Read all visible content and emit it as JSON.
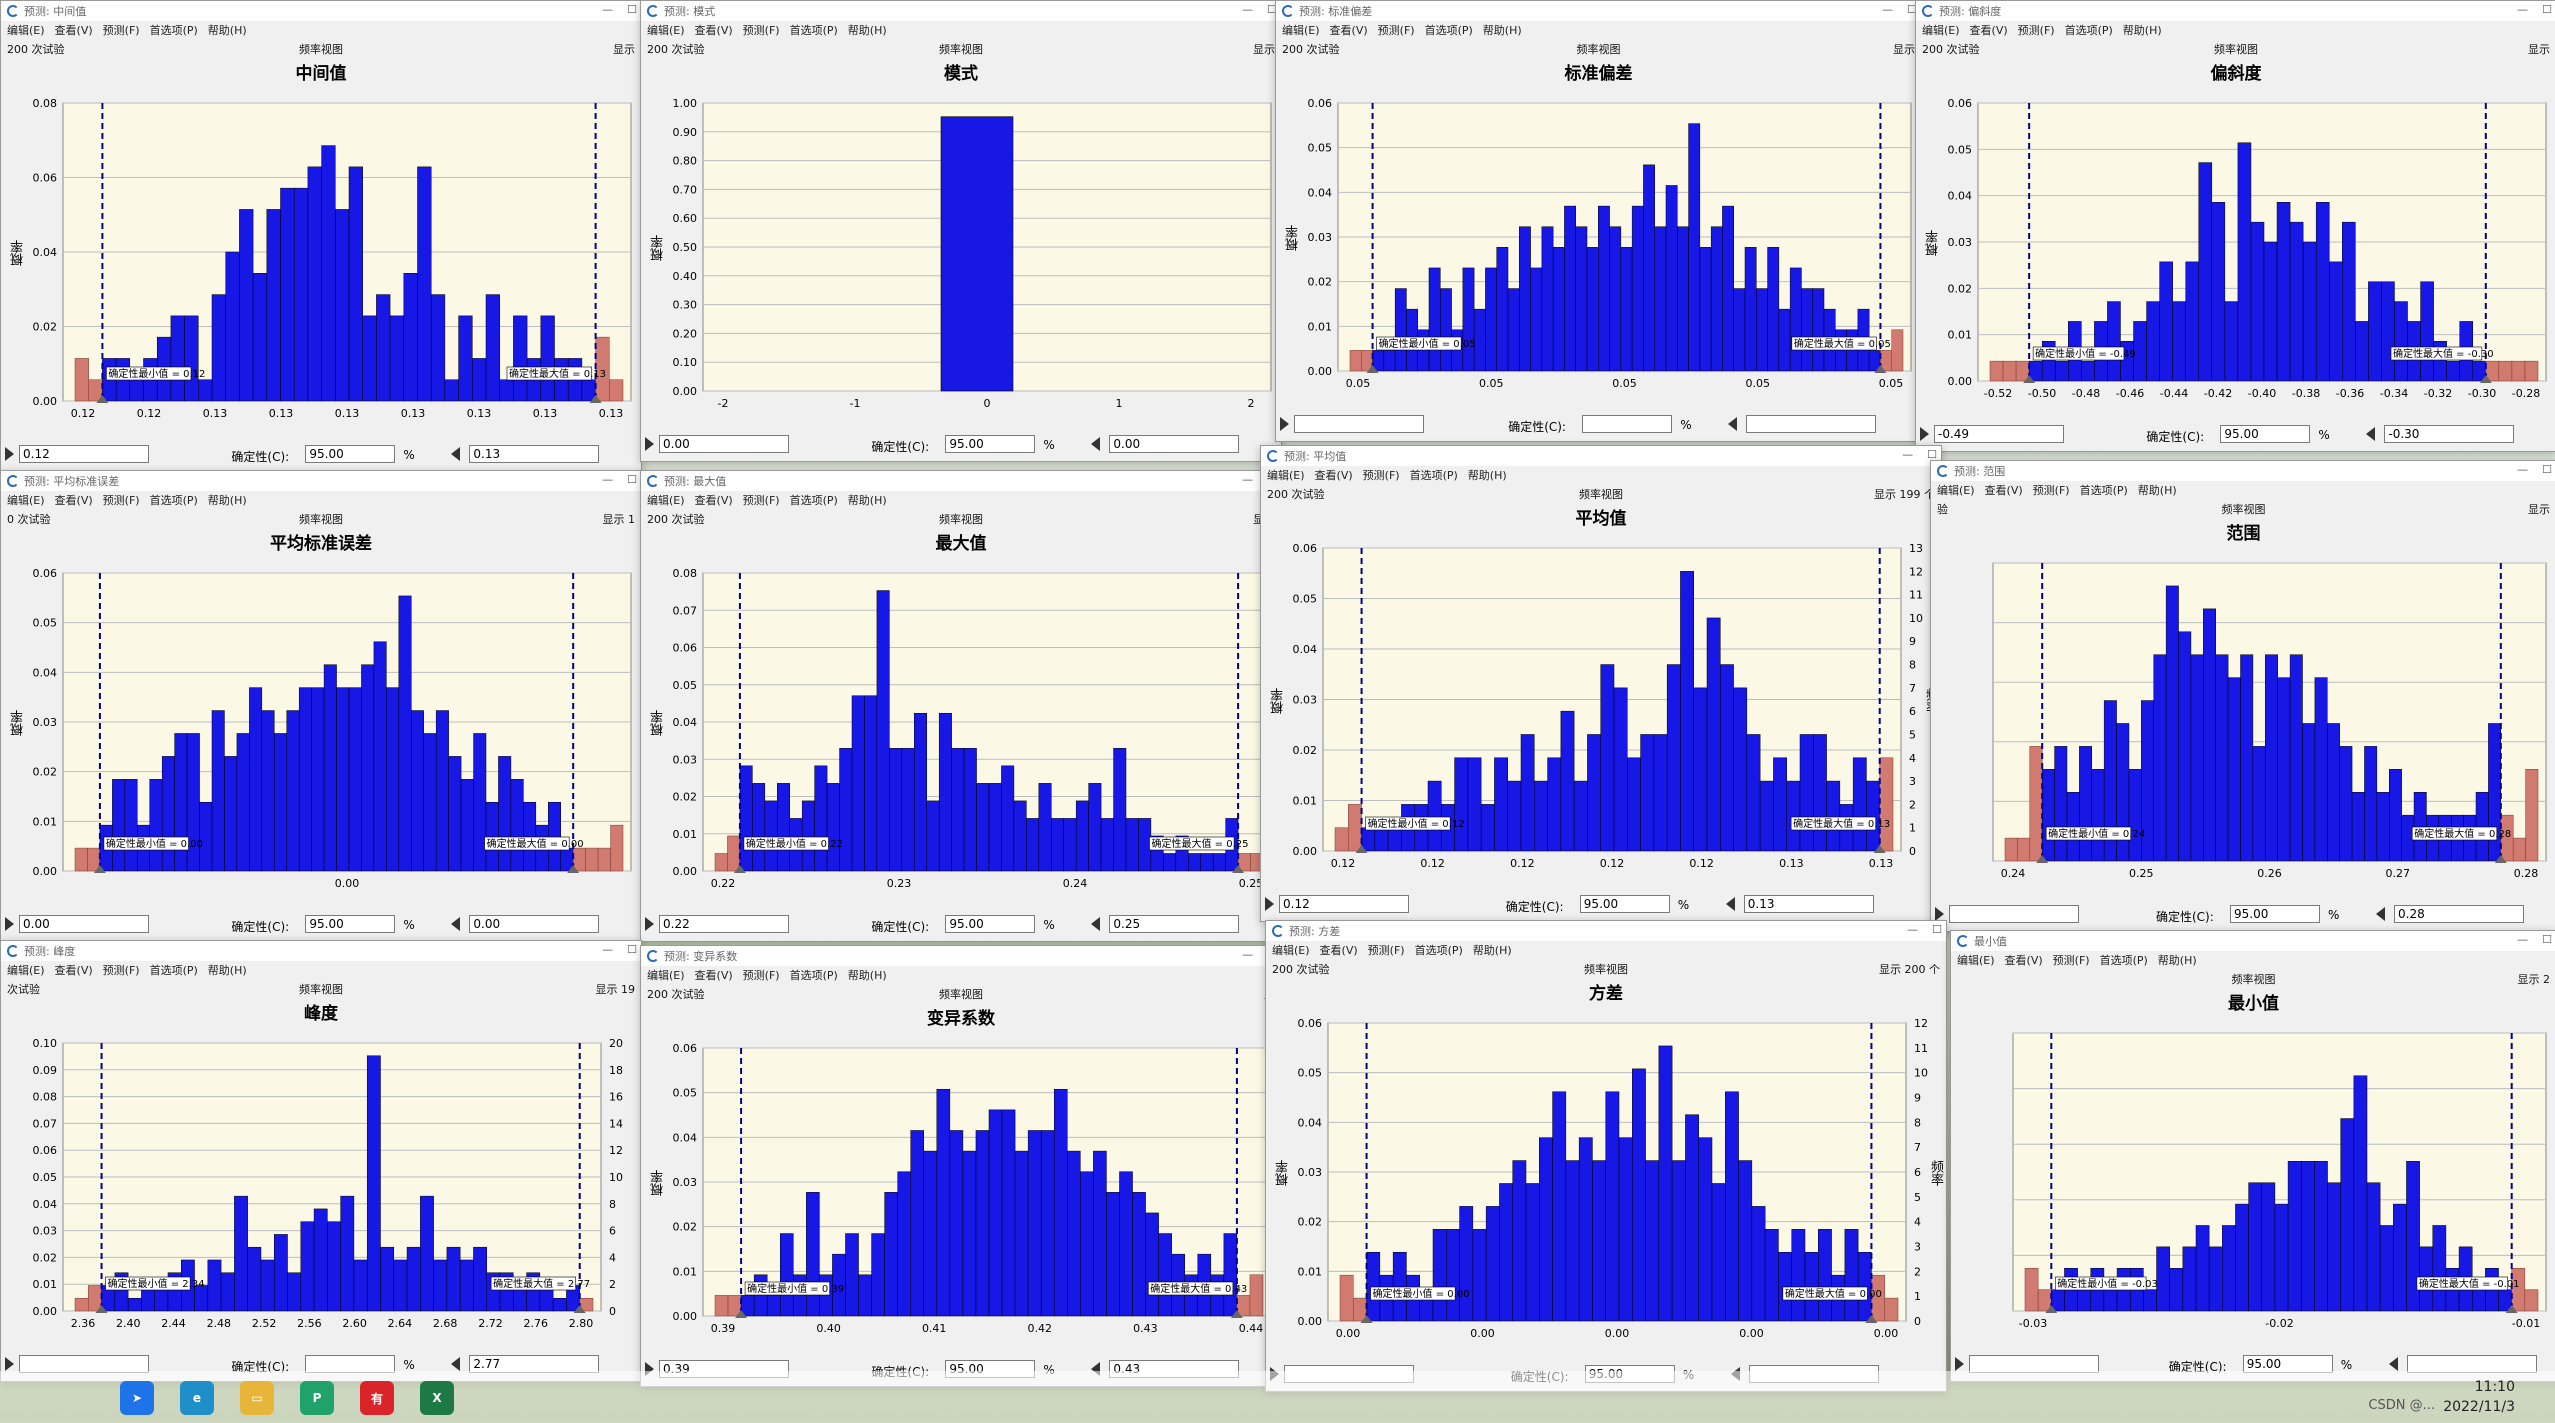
{
  "ui": {
    "menu": [
      "编辑(E)",
      "查看(V)",
      "预测(F)",
      "首选项(P)",
      "帮助(H)"
    ],
    "view_label": "频率视图",
    "certainty_label": "确定性(C):",
    "pct": "%",
    "y_axis_label": "概率",
    "y2_axis_label": "频率",
    "min_cert_label": "确定性最小值",
    "max_cert_label": "确定性最大值",
    "colors": {
      "bar": "#1717e6",
      "tail": "#d07a70",
      "plot_bg": "#fbf9e6",
      "cert_line": "#00008b"
    }
  },
  "taskbar": {
    "time": "11:10",
    "date": "2022/11/3",
    "watermark": "CSDN @..."
  },
  "windows": [
    {
      "title": "预测: 中间值",
      "chart_title": "中间值",
      "trials": "200 次试验",
      "display": "显示",
      "left_value": "0.12",
      "certainty": "95.00",
      "right_value": "0.13",
      "minv_label": "= 0.12",
      "maxv_label": "= 0.13"
    },
    {
      "title": "预测: 模式",
      "chart_title": "模式",
      "trials": "200 次试验",
      "display": "显示",
      "left_value": "0.00",
      "certainty": "95.00",
      "right_value": "0.00",
      "minv_label": "= 0.00",
      "maxv_label": "= 0.00"
    },
    {
      "title": "预测: 标准偏差",
      "chart_title": "标准偏差",
      "trials": "200 次试验",
      "display": "显示",
      "left_value": "",
      "certainty": "",
      "right_value": "",
      "minv_label": "= 0.05",
      "maxv_label": "= 0.05"
    },
    {
      "title": "预测: 偏斜度",
      "chart_title": "偏斜度",
      "trials": "200 次试验",
      "display": "显示",
      "left_value": "-0.49",
      "certainty": "95.00",
      "right_value": "-0.30",
      "minv_label": "= -0.49",
      "maxv_label": "= -0.30"
    },
    {
      "title": "预测: 平均标准误差",
      "chart_title": "平均标准误差",
      "trials": "0 次试验",
      "display": "显示 1",
      "left_value": "0.00",
      "certainty": "95.00",
      "right_value": "0.00",
      "minv_label": "= 0.00",
      "maxv_label": "= 0.00"
    },
    {
      "title": "预测: 最大值",
      "chart_title": "最大值",
      "trials": "200 次试验",
      "display": "显示",
      "left_value": "0.22",
      "certainty": "95.00",
      "right_value": "0.25",
      "minv_label": "= 0.22",
      "maxv_label": "= 0.25"
    },
    {
      "title": "预测: 平均值",
      "chart_title": "平均值",
      "trials": "200 次试验",
      "display": "显示 199 个",
      "left_value": "0.12",
      "certainty": "95.00",
      "right_value": "0.13",
      "minv_label": "= 0.12",
      "maxv_label": "= 0.13"
    },
    {
      "title": "预测: 范围",
      "chart_title": "范围",
      "trials": "验",
      "display": "显示",
      "left_value": "",
      "certainty": "95.00",
      "right_value": "0.28",
      "minv_label": "= 0.24",
      "maxv_label": "= 0.28"
    },
    {
      "title": "预测: 峰度",
      "chart_title": "峰度",
      "trials": "次试验",
      "display": "显示 19",
      "left_value": "",
      "certainty": "",
      "right_value": "2.77",
      "minv_label": "= 2.34",
      "maxv_label": "= 2.77"
    },
    {
      "title": "预测: 变异系数",
      "chart_title": "变异系数",
      "trials": "200 次试验",
      "display": "显",
      "left_value": "0.39",
      "certainty": "95.00",
      "right_value": "0.43",
      "minv_label": "= 0.39",
      "maxv_label": "= 0.43"
    },
    {
      "title": "预测: 方差",
      "chart_title": "方差",
      "trials": "200 次试验",
      "display": "显示 200 个",
      "left_value": "",
      "certainty": "95.00",
      "right_value": "",
      "minv_label": "= 0.00",
      "maxv_label": "= 0.00"
    },
    {
      "title": "最小值",
      "chart_title": "最小值",
      "trials": "",
      "display": "显示 2",
      "left_value": "",
      "certainty": "95.00",
      "right_value": "",
      "minv_label": "= -0.03",
      "maxv_label": "= -0.01"
    }
  ],
  "chart_data": [
    {
      "type": "bar",
      "title": "中间值",
      "ylabel": "概率",
      "ylim": [
        0,
        0.07
      ],
      "yticks": [
        "0.00",
        "0.02",
        "0.04",
        "0.06",
        "0.08"
      ],
      "xticks": [
        "0.12",
        "0.12",
        "0.13",
        "0.13",
        "0.13",
        "0.13",
        "0.13",
        "0.13",
        "0.13"
      ],
      "values": [
        0.01,
        0.01,
        0.005,
        0.01,
        0.015,
        0.02,
        0.02,
        0.005,
        0.025,
        0.035,
        0.045,
        0.03,
        0.045,
        0.05,
        0.05,
        0.055,
        0.06,
        0.045,
        0.055,
        0.02,
        0.025,
        0.02,
        0.03,
        0.055,
        0.025,
        0.005,
        0.02,
        0.01,
        0.025,
        0.005,
        0.02,
        0.01,
        0.02,
        0.01,
        0.01,
        0.005
      ],
      "tail_left": [
        0.01,
        0.005
      ],
      "tail_right": [
        0.015,
        0.005
      ]
    },
    {
      "type": "bar",
      "title": "模式",
      "ylabel": "概率",
      "ylim": [
        0,
        1.05
      ],
      "yticks": [
        "0.00",
        "0.10",
        "0.20",
        "0.30",
        "0.40",
        "0.50",
        "0.60",
        "0.70",
        "0.80",
        "0.90",
        "1.00"
      ],
      "xticks": [
        "-2",
        "-1",
        "0",
        "1",
        "2"
      ],
      "values": [
        1.0
      ],
      "tail_left": [],
      "tail_right": []
    },
    {
      "type": "bar",
      "title": "标准偏差",
      "ylabel": "概率",
      "ylim": [
        0,
        0.065
      ],
      "yticks": [
        "0.00",
        "0.01",
        "0.02",
        "0.03",
        "0.04",
        "0.05",
        "0.06"
      ],
      "xticks": [
        "0.05",
        "0.05",
        "0.05",
        "0.05",
        "0.05"
      ],
      "values": [
        0.005,
        0.005,
        0.02,
        0.015,
        0.01,
        0.025,
        0.02,
        0.01,
        0.025,
        0.015,
        0.025,
        0.03,
        0.02,
        0.035,
        0.025,
        0.035,
        0.03,
        0.04,
        0.035,
        0.03,
        0.04,
        0.035,
        0.03,
        0.04,
        0.05,
        0.035,
        0.045,
        0.035,
        0.06,
        0.03,
        0.035,
        0.04,
        0.02,
        0.03,
        0.02,
        0.03,
        0.015,
        0.025,
        0.02,
        0.02,
        0.015,
        0.01,
        0.01,
        0.015,
        0.005
      ],
      "tail_left": [
        0.005,
        0.005
      ],
      "tail_right": [
        0.005,
        0.01
      ]
    },
    {
      "type": "bar",
      "title": "偏斜度",
      "ylabel": "概率",
      "ylim": [
        0,
        0.07
      ],
      "yticks": [
        "0.00",
        "0.01",
        "0.02",
        "0.03",
        "0.04",
        "0.05",
        "0.06"
      ],
      "xticks": [
        "-0.52",
        "-0.50",
        "-0.48",
        "-0.46",
        "-0.44",
        "-0.42",
        "-0.40",
        "-0.38",
        "-0.36",
        "-0.34",
        "-0.32",
        "-0.30",
        "-0.28"
      ],
      "values": [
        0.005,
        0.01,
        0.005,
        0.015,
        0.005,
        0.015,
        0.02,
        0.01,
        0.015,
        0.02,
        0.03,
        0.02,
        0.03,
        0.055,
        0.045,
        0.02,
        0.06,
        0.04,
        0.035,
        0.045,
        0.04,
        0.035,
        0.045,
        0.03,
        0.04,
        0.015,
        0.025,
        0.025,
        0.02,
        0.015,
        0.025,
        0.01,
        0.005,
        0.015,
        0.005
      ],
      "tail_left": [
        0.005,
        0.005,
        0.005
      ],
      "tail_right": [
        0.005,
        0.005,
        0.005,
        0.005
      ]
    },
    {
      "type": "bar",
      "title": "平均标准误差",
      "ylabel": "概率",
      "ylim": [
        0,
        0.065
      ],
      "yticks": [
        "0.00",
        "0.01",
        "0.02",
        "0.03",
        "0.04",
        "0.05",
        "0.06"
      ],
      "xticks": [
        "0.00"
      ],
      "values": [
        0.01,
        0.02,
        0.02,
        0.01,
        0.02,
        0.025,
        0.03,
        0.03,
        0.015,
        0.035,
        0.025,
        0.03,
        0.04,
        0.035,
        0.03,
        0.035,
        0.04,
        0.04,
        0.045,
        0.04,
        0.04,
        0.045,
        0.05,
        0.04,
        0.06,
        0.035,
        0.03,
        0.035,
        0.025,
        0.02,
        0.03,
        0.015,
        0.025,
        0.02,
        0.015,
        0.01,
        0.015,
        0.005
      ],
      "tail_left": [
        0.005,
        0.005
      ],
      "tail_right": [
        0.005,
        0.005,
        0.005,
        0.01
      ]
    },
    {
      "type": "bar",
      "title": "最大值",
      "ylabel": "概率",
      "ylim": [
        0,
        0.085
      ],
      "yticks": [
        "0.00",
        "0.01",
        "0.02",
        "0.03",
        "0.04",
        "0.05",
        "0.06",
        "0.07",
        "0.08"
      ],
      "xticks": [
        "0.22",
        "0.23",
        "0.24",
        "0.25"
      ],
      "values": [
        0.03,
        0.025,
        0.02,
        0.025,
        0.015,
        0.02,
        0.03,
        0.025,
        0.035,
        0.05,
        0.05,
        0.08,
        0.035,
        0.035,
        0.045,
        0.02,
        0.045,
        0.035,
        0.035,
        0.025,
        0.025,
        0.03,
        0.02,
        0.015,
        0.025,
        0.015,
        0.015,
        0.02,
        0.025,
        0.015,
        0.035,
        0.015,
        0.015,
        0.01,
        0.005,
        0.01,
        0.005,
        0.005,
        0.005,
        0.015
      ],
      "tail_left": [
        0.005,
        0.01
      ],
      "tail_right": [
        0.005,
        0.005
      ]
    },
    {
      "type": "bar",
      "title": "平均值",
      "ylabel": "概率",
      "y2label": "频率",
      "ylim": [
        0,
        0.065
      ],
      "yticks": [
        "0.00",
        "0.01",
        "0.02",
        "0.03",
        "0.04",
        "0.05",
        "0.06"
      ],
      "y2ticks": [
        "0",
        "1",
        "2",
        "3",
        "4",
        "5",
        "6",
        "7",
        "8",
        "9",
        "10",
        "11",
        "12",
        "13"
      ],
      "xticks": [
        "0.12",
        "0.12",
        "0.12",
        "0.12",
        "0.12",
        "0.13",
        "0.13"
      ],
      "values": [
        0.005,
        0.005,
        0.005,
        0.01,
        0.01,
        0.015,
        0.01,
        0.02,
        0.02,
        0.01,
        0.02,
        0.015,
        0.025,
        0.015,
        0.02,
        0.03,
        0.015,
        0.025,
        0.04,
        0.035,
        0.02,
        0.025,
        0.025,
        0.04,
        0.06,
        0.035,
        0.05,
        0.04,
        0.035,
        0.025,
        0.015,
        0.02,
        0.015,
        0.025,
        0.025,
        0.015,
        0.01,
        0.02,
        0.015
      ],
      "tail_left": [
        0.005,
        0.01
      ],
      "tail_right": [
        0.02
      ]
    },
    {
      "type": "bar",
      "title": "范围",
      "ylabel": "",
      "ylim": [
        0,
        0.065
      ],
      "yticks": [
        "",
        "",
        "",
        "",
        "",
        ""
      ],
      "xticks": [
        "0.24",
        "0.25",
        "0.26",
        "0.27",
        "0.28"
      ],
      "values": [
        0.02,
        0.025,
        0.015,
        0.025,
        0.02,
        0.035,
        0.03,
        0.02,
        0.035,
        0.045,
        0.06,
        0.05,
        0.045,
        0.055,
        0.045,
        0.04,
        0.045,
        0.025,
        0.045,
        0.04,
        0.045,
        0.03,
        0.04,
        0.03,
        0.025,
        0.015,
        0.025,
        0.015,
        0.02,
        0.01,
        0.015,
        0.01,
        0.01,
        0.01,
        0.01,
        0.015,
        0.03
      ],
      "tail_left": [
        0.005,
        0.005,
        0.025
      ],
      "tail_right": [
        0.01,
        0.005,
        0.02
      ]
    },
    {
      "type": "bar",
      "title": "峰度",
      "ylabel": "",
      "y2label": "",
      "ylim": [
        0,
        0.105
      ],
      "yticks": [
        "0.00",
        "0.01",
        "0.02",
        "0.03",
        "0.04",
        "0.05",
        "0.06",
        "0.07",
        "0.08",
        "0.09",
        "0.10"
      ],
      "y2ticks": [
        "0",
        "2",
        "4",
        "6",
        "8",
        "10",
        "12",
        "14",
        "16",
        "18",
        "20"
      ],
      "xticks": [
        "2.36",
        "2.40",
        "2.44",
        "2.48",
        "2.52",
        "2.56",
        "2.60",
        "2.64",
        "2.68",
        "2.72",
        "2.76",
        "2.80"
      ],
      "values": [
        0.01,
        0.015,
        0.005,
        0.01,
        0.01,
        0.015,
        0.02,
        0.01,
        0.02,
        0.015,
        0.045,
        0.025,
        0.02,
        0.03,
        0.015,
        0.035,
        0.04,
        0.035,
        0.045,
        0.02,
        0.1,
        0.025,
        0.02,
        0.025,
        0.045,
        0.02,
        0.025,
        0.02,
        0.025,
        0.015,
        0.015,
        0.01,
        0.015,
        0.01,
        0.005,
        0.01
      ],
      "tail_left": [
        0.005,
        0.01
      ],
      "tail_right": [
        0.005
      ]
    },
    {
      "type": "bar",
      "title": "变异系数",
      "ylabel": "概率",
      "ylim": [
        0,
        0.065
      ],
      "yticks": [
        "0.00",
        "0.01",
        "0.02",
        "0.03",
        "0.04",
        "0.05",
        "0.06"
      ],
      "xticks": [
        "0.39",
        "0.40",
        "0.41",
        "0.42",
        "0.43",
        "0.44"
      ],
      "values": [
        0.005,
        0.01,
        0.005,
        0.02,
        0.01,
        0.03,
        0.01,
        0.015,
        0.02,
        0.01,
        0.02,
        0.03,
        0.035,
        0.045,
        0.04,
        0.055,
        0.045,
        0.04,
        0.045,
        0.05,
        0.05,
        0.04,
        0.045,
        0.045,
        0.055,
        0.04,
        0.035,
        0.04,
        0.03,
        0.035,
        0.03,
        0.025,
        0.02,
        0.015,
        0.01,
        0.015,
        0.01,
        0.02
      ],
      "tail_left": [
        0.005,
        0.005
      ],
      "tail_right": [
        0.005,
        0.01
      ]
    },
    {
      "type": "bar",
      "title": "方差",
      "ylabel": "概率",
      "y2label": "频率",
      "ylim": [
        0,
        0.065
      ],
      "yticks": [
        "0.00",
        "0.01",
        "0.02",
        "0.03",
        "0.04",
        "0.05",
        "0.06"
      ],
      "y2ticks": [
        "0",
        "1",
        "2",
        "3",
        "4",
        "5",
        "6",
        "7",
        "8",
        "9",
        "10",
        "11",
        "12"
      ],
      "xticks": [
        "0.00",
        "0.00",
        "0.00",
        "0.00",
        "0.00"
      ],
      "values": [
        0.015,
        0.01,
        0.015,
        0.01,
        0.005,
        0.02,
        0.02,
        0.025,
        0.02,
        0.025,
        0.03,
        0.035,
        0.03,
        0.04,
        0.05,
        0.035,
        0.04,
        0.035,
        0.05,
        0.04,
        0.055,
        0.035,
        0.06,
        0.035,
        0.045,
        0.04,
        0.03,
        0.05,
        0.035,
        0.025,
        0.02,
        0.015,
        0.02,
        0.015,
        0.02,
        0.01,
        0.02,
        0.015
      ],
      "tail_left": [
        0.01,
        0.005
      ],
      "tail_right": [
        0.01,
        0.005
      ]
    },
    {
      "type": "bar",
      "title": "最小值",
      "ylabel": "",
      "ylim": [
        0,
        0.065
      ],
      "yticks": [
        "",
        "",
        "",
        "",
        "",
        ""
      ],
      "xticks": [
        "-0.03",
        "-0.02",
        "-0.01"
      ],
      "values": [
        0.005,
        0.01,
        0.005,
        0.01,
        0.005,
        0.01,
        0.01,
        0.005,
        0.015,
        0.01,
        0.015,
        0.02,
        0.015,
        0.02,
        0.025,
        0.03,
        0.03,
        0.025,
        0.035,
        0.035,
        0.035,
        0.03,
        0.045,
        0.055,
        0.03,
        0.02,
        0.025,
        0.035,
        0.015,
        0.02,
        0.01,
        0.015,
        0.005,
        0.01,
        0.005
      ],
      "tail_left": [
        0.01,
        0.005
      ],
      "tail_right": [
        0.01,
        0.005
      ]
    }
  ]
}
